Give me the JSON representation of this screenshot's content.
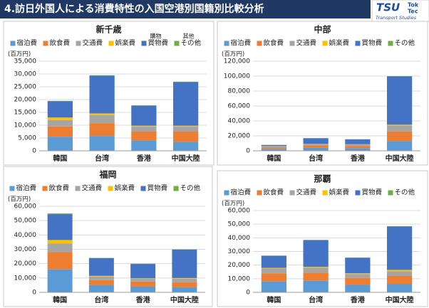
{
  "header": {
    "title": "4.訪日外国人による消費特性の入国空港別国籍別比較分析",
    "logo": "TSU",
    "logo_line1": "Tok",
    "logo_line2": "Tec",
    "logo_sub": "Transport Studies"
  },
  "chart_data": [
    {
      "type": "bar",
      "stacked": true,
      "title": "新千歳",
      "y_label": "(百万円)",
      "annotations": [
        "購物",
        "其他"
      ],
      "categories": [
        "韓国",
        "台湾",
        "香港",
        "中国大陸"
      ],
      "series": [
        {
          "name": "宿泊費",
          "color": "#5b9bd5",
          "values": [
            5500,
            5800,
            4000,
            3500
          ]
        },
        {
          "name": "飲食費",
          "color": "#ed7d31",
          "values": [
            4000,
            5000,
            3500,
            4000
          ]
        },
        {
          "name": "交通費",
          "color": "#a5a5a5",
          "values": [
            2500,
            3200,
            2000,
            2000
          ]
        },
        {
          "name": "娯楽費",
          "color": "#ffc000",
          "values": [
            1000,
            600,
            300,
            300
          ]
        },
        {
          "name": "買物費",
          "color": "#4472c4",
          "values": [
            6300,
            14700,
            7800,
            17000
          ]
        },
        {
          "name": "その他",
          "color": "#70ad47",
          "values": [
            200,
            200,
            200,
            200
          ]
        }
      ],
      "ylim": [
        0,
        35000
      ],
      "yticks": [
        0,
        {
          "value": 5000,
          "label": "5,000"
        },
        {
          "value": 10000,
          "label": "10,000"
        },
        {
          "value": 15000,
          "label": "15,000"
        },
        {
          "value": 20000,
          "label": "20,000"
        },
        {
          "value": 25000,
          "label": "25,000"
        },
        {
          "value": 30000,
          "label": "30,000"
        },
        {
          "value": 35000,
          "label": "35,000"
        }
      ]
    },
    {
      "type": "bar",
      "stacked": true,
      "title": "中部",
      "y_label": "(百万円)",
      "categories": [
        "韓国",
        "台湾",
        "香港",
        "中国大陸"
      ],
      "series": [
        {
          "name": "宿泊費",
          "color": "#5b9bd5",
          "values": [
            2500,
            4000,
            3500,
            13000
          ]
        },
        {
          "name": "飲食費",
          "color": "#ed7d31",
          "values": [
            2000,
            3000,
            3000,
            13000
          ]
        },
        {
          "name": "交通費",
          "color": "#a5a5a5",
          "values": [
            1500,
            2000,
            2000,
            8000
          ]
        },
        {
          "name": "娯楽費",
          "color": "#ffc000",
          "values": [
            300,
            300,
            300,
            1000
          ]
        },
        {
          "name": "買物費",
          "color": "#4472c4",
          "values": [
            1500,
            7500,
            6500,
            64500
          ]
        },
        {
          "name": "その他",
          "color": "#70ad47",
          "values": [
            200,
            200,
            200,
            500
          ]
        }
      ],
      "ylim": [
        0,
        120000
      ],
      "yticks": [
        0,
        {
          "value": 20000,
          "label": "20,000"
        },
        {
          "value": 40000,
          "label": "40,000"
        },
        {
          "value": 60000,
          "label": "60,000"
        },
        {
          "value": 80000,
          "label": "80,000"
        },
        {
          "value": 100000,
          "label": "100,000"
        },
        {
          "value": 120000,
          "label": "120,000"
        }
      ]
    },
    {
      "type": "bar",
      "stacked": true,
      "title": "福岡",
      "y_label": "(百万円)",
      "categories": [
        "韓国",
        "台湾",
        "香港",
        "中国大陸"
      ],
      "series": [
        {
          "name": "宿泊費",
          "color": "#5b9bd5",
          "values": [
            16000,
            5000,
            4000,
            3500
          ]
        },
        {
          "name": "飲食費",
          "color": "#ed7d31",
          "values": [
            12000,
            3500,
            3500,
            3500
          ]
        },
        {
          "name": "交通費",
          "color": "#a5a5a5",
          "values": [
            6000,
            2500,
            2000,
            2500
          ]
        },
        {
          "name": "娯楽費",
          "color": "#ffc000",
          "values": [
            2500,
            500,
            300,
            500
          ]
        },
        {
          "name": "買物費",
          "color": "#4472c4",
          "values": [
            18000,
            12300,
            10000,
            19800
          ]
        },
        {
          "name": "その他",
          "color": "#70ad47",
          "values": [
            500,
            200,
            200,
            200
          ]
        }
      ],
      "ylim": [
        0,
        60000
      ],
      "yticks": [
        0,
        {
          "value": 10000,
          "label": "10,000"
        },
        {
          "value": 20000,
          "label": "20,000"
        },
        {
          "value": 30000,
          "label": "30,000"
        },
        {
          "value": 40000,
          "label": "40,000"
        },
        {
          "value": 50000,
          "label": "50,000"
        },
        {
          "value": 60000,
          "label": "60,000"
        }
      ]
    },
    {
      "type": "bar",
      "stacked": true,
      "title": "那覇",
      "y_label": "(百万円)",
      "categories": [
        "韓国",
        "台湾",
        "香港",
        "中国大陸"
      ],
      "series": [
        {
          "name": "宿泊費",
          "color": "#5b9bd5",
          "values": [
            8000,
            8500,
            5500,
            6000
          ]
        },
        {
          "name": "飲食費",
          "color": "#ed7d31",
          "values": [
            6000,
            6000,
            5000,
            6000
          ]
        },
        {
          "name": "交通費",
          "color": "#a5a5a5",
          "values": [
            3500,
            3500,
            3000,
            3500
          ]
        },
        {
          "name": "娯楽費",
          "color": "#ffc000",
          "values": [
            500,
            700,
            500,
            1000
          ]
        },
        {
          "name": "買物費",
          "color": "#4472c4",
          "values": [
            8800,
            19600,
            11300,
            31800
          ]
        },
        {
          "name": "その他",
          "color": "#70ad47",
          "values": [
            200,
            200,
            200,
            200
          ]
        }
      ],
      "ylim": [
        0,
        60000
      ],
      "yticks": [
        0,
        {
          "value": 10000,
          "label": "10,000"
        },
        {
          "value": 20000,
          "label": "20,000"
        },
        {
          "value": 30000,
          "label": "30,000"
        },
        {
          "value": 40000,
          "label": "40,000"
        },
        {
          "value": 50000,
          "label": "50,000"
        },
        {
          "value": 60000,
          "label": "60,000"
        }
      ]
    }
  ]
}
